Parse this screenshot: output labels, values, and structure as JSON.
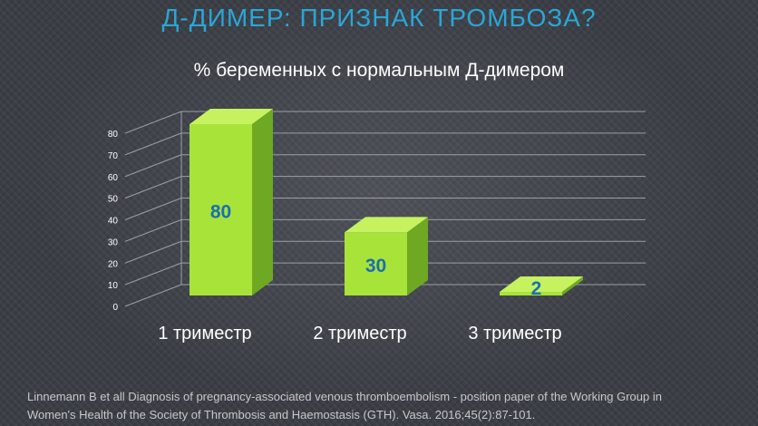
{
  "slide": {
    "title": "Д-ДИМЕР: ПРИЗНАК ТРОМБОЗА?",
    "citation_line1": "Linnemann B et all Diagnosis of pregnancy-associated venous thromboembolism - position paper of the Working Group in",
    "citation_line2": "Women's Health of the Society of Thrombosis and Haemostasis (GTH). Vasa. 2016;45(2):87-101."
  },
  "colors": {
    "bar_front": "#a8e33a",
    "bar_side": "#6fa823",
    "bar_top": "#c5f25e",
    "value_label": "#1a6fb0",
    "grid": "#9aa0a6",
    "title": "#2aa6d6"
  },
  "chart_data": {
    "type": "bar",
    "title": "% беременных с нормальным Д-димером",
    "categories": [
      "1 триместр",
      "2 триместр",
      "3 триместр"
    ],
    "values": [
      80,
      30,
      2
    ],
    "data_labels": [
      "80",
      "30",
      "2"
    ],
    "ylim": [
      0,
      80
    ],
    "yticks": [
      0,
      10,
      20,
      30,
      40,
      50,
      60,
      70,
      80
    ],
    "xlabel": "",
    "ylabel": "",
    "grid": true,
    "style": "3d"
  }
}
